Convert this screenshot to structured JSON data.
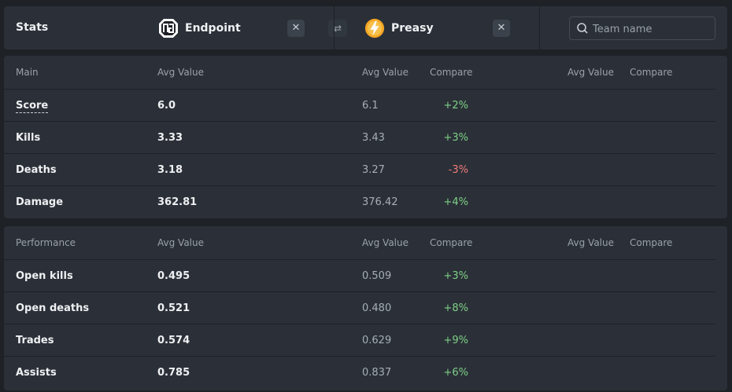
{
  "header": {
    "title": "Stats",
    "team1": {
      "name": "Endpoint",
      "logo_icon": "endpoint-logo"
    },
    "team2": {
      "name": "Preasy",
      "logo_icon": "preasy-lightning-logo"
    },
    "swap_icon": "swap-arrows-icon",
    "search": {
      "placeholder": "Team name",
      "value": ""
    }
  },
  "main": {
    "section_label": "Main",
    "col_avg_value": "Avg Value",
    "col_compare": "Compare",
    "rows": [
      {
        "label": "Score",
        "team1": "6.0",
        "team2": "6.1",
        "compare": "+2%"
      },
      {
        "label": "Kills",
        "team1": "3.33",
        "team2": "3.43",
        "compare": "+3%"
      },
      {
        "label": "Deaths",
        "team1": "3.18",
        "team2": "3.27",
        "compare": "-3%"
      },
      {
        "label": "Damage",
        "team1": "362.81",
        "team2": "376.42",
        "compare": "+4%"
      }
    ]
  },
  "performance": {
    "section_label": "Performance",
    "col_avg_value": "Avg Value",
    "col_compare": "Compare",
    "rows": [
      {
        "label": "Open kills",
        "team1": "0.495",
        "team2": "0.509",
        "compare": "+3%"
      },
      {
        "label": "Open deaths",
        "team1": "0.521",
        "team2": "0.480",
        "compare": "+8%"
      },
      {
        "label": "Trades",
        "team1": "0.574",
        "team2": "0.629",
        "compare": "+9%"
      },
      {
        "label": "Assists",
        "team1": "0.785",
        "team2": "0.837",
        "compare": "+6%"
      }
    ]
  },
  "colors": {
    "background": "#1e2126",
    "panel": "#2b3038",
    "positive": "#7ed086",
    "negative": "#f07a7a",
    "preasy_accent": "#f5a623"
  }
}
